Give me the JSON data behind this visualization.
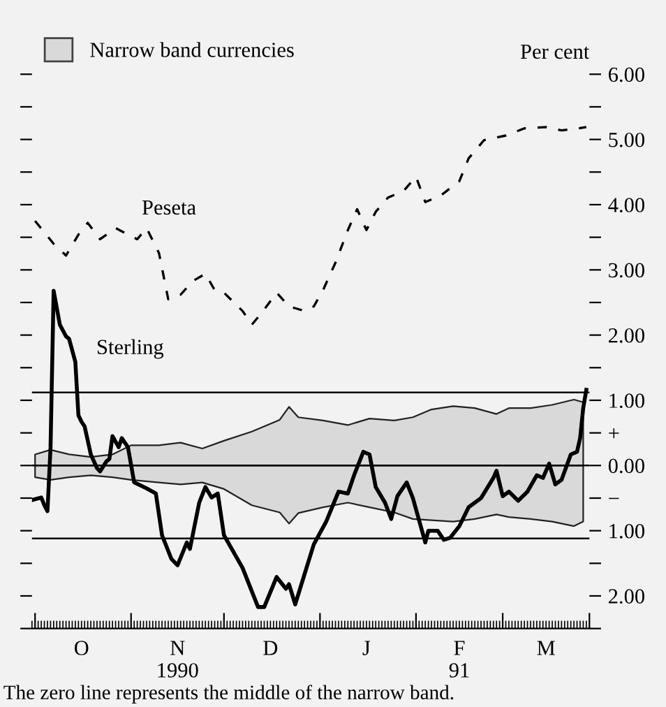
{
  "chart_data": {
    "type": "line",
    "ylabel": "Per cent",
    "xlim": [
      "1990-09-30",
      "1991-03-29"
    ],
    "xticks": [
      {
        "value": "1990-10-01",
        "label": null
      },
      {
        "value": "1990-11-01",
        "label": null
      },
      {
        "value": "1990-12-01",
        "label": null
      },
      {
        "value": "1991-01-01",
        "label": null
      },
      {
        "value": "1991-02-01",
        "label": null
      },
      {
        "value": "1991-03-01",
        "label": null
      },
      {
        "value": "1991-03-29",
        "label": null
      },
      {
        "value": "1990-10-16",
        "label": "O"
      },
      {
        "value": "1990-11-16",
        "label": "N\n1990"
      },
      {
        "value": "1990-12-16",
        "label": "D"
      },
      {
        "value": "1991-01-16",
        "label": "J"
      },
      {
        "value": "1991-02-15",
        "label": "F\n91"
      },
      {
        "value": "1991-03-15",
        "label": "M"
      }
    ],
    "ylim": [
      -2.5,
      6
    ],
    "yticks": [
      {
        "value": 6,
        "label": "6.00"
      },
      {
        "value": 5.5,
        "label": null
      },
      {
        "value": 5,
        "label": "5.00"
      },
      {
        "value": 4.5,
        "label": null
      },
      {
        "value": 4,
        "label": "4.00"
      },
      {
        "value": 3.5,
        "label": null
      },
      {
        "value": 3,
        "label": "3.00"
      },
      {
        "value": 2.5,
        "label": null
      },
      {
        "value": 2,
        "label": "2.00"
      },
      {
        "value": 1.5,
        "label": null
      },
      {
        "value": 1,
        "label": "1.00"
      },
      {
        "value": 0.5,
        "label": "+"
      },
      {
        "value": 0,
        "label": "0.00"
      },
      {
        "value": -0.5,
        "label": "−"
      },
      {
        "value": -1,
        "label": "1.00"
      },
      {
        "value": -1.5,
        "label": null
      },
      {
        "value": -2,
        "label": "2.00"
      },
      {
        "value": -2.5,
        "label": null
      }
    ],
    "grid": false,
    "legend": "top left",
    "series": [
      {
        "type": "area",
        "name": "Narrow band currencies",
        "color": "#d9d9d9",
        "x": [
          "1990-10-01",
          "1990-10-06",
          "1990-10-12",
          "1990-10-19",
          "1990-10-26",
          "1990-11-01",
          "1990-11-10",
          "1990-11-17",
          "1990-11-24",
          "1990-12-01",
          "1990-12-10",
          "1990-12-19",
          "1990-12-22",
          "1990-12-25",
          "1991-01-02",
          "1991-01-10",
          "1991-01-17",
          "1991-01-25",
          "1991-01-31",
          "1991-02-06",
          "1991-02-13",
          "1991-02-20",
          "1991-02-27",
          "1991-03-03",
          "1991-03-10",
          "1991-03-17",
          "1991-03-24",
          "1991-03-27"
        ],
        "values": [
          0.17,
          0.24,
          0.17,
          0.13,
          0.17,
          0.31,
          0.31,
          0.35,
          0.26,
          0.38,
          0.52,
          0.7,
          0.9,
          0.74,
          0.69,
          0.62,
          0.72,
          0.69,
          0.74,
          0.86,
          0.91,
          0.88,
          0.79,
          0.88,
          0.88,
          0.93,
          1.01,
          0.97
        ]
      },
      {
        "type": "area",
        "color": "#d9d9d9",
        "x": [
          "1990-10-01",
          "1990-10-06",
          "1990-10-12",
          "1990-10-19",
          "1990-10-26",
          "1990-11-01",
          "1990-11-10",
          "1990-11-17",
          "1990-11-24",
          "1990-12-01",
          "1990-12-10",
          "1990-12-19",
          "1990-12-22",
          "1990-12-25",
          "1991-01-02",
          "1991-01-10",
          "1991-01-17",
          "1991-01-25",
          "1991-01-31",
          "1991-02-06",
          "1991-02-13",
          "1991-02-20",
          "1991-02-27",
          "1991-03-03",
          "1991-03-10",
          "1991-03-17",
          "1991-03-24",
          "1991-03-27"
        ],
        "values": [
          -0.18,
          -0.22,
          -0.18,
          -0.15,
          -0.18,
          -0.22,
          -0.26,
          -0.29,
          -0.26,
          -0.36,
          -0.61,
          -0.72,
          -0.89,
          -0.73,
          -0.64,
          -0.57,
          -0.64,
          -0.72,
          -0.82,
          -0.84,
          -0.86,
          -0.82,
          -0.75,
          -0.79,
          -0.82,
          -0.86,
          -0.93,
          -0.86
        ]
      },
      {
        "name": "Peseta",
        "color": "#000000",
        "line_style": "dashed",
        "x": [
          "1990-10-01",
          "1990-10-07",
          "1990-10-11",
          "1990-10-15",
          "1990-10-18",
          "1990-10-22",
          "1990-10-27",
          "1990-11-03",
          "1990-11-06",
          "1990-11-10",
          "1990-11-13",
          "1990-11-17",
          "1990-11-21",
          "1990-11-25",
          "1990-11-28",
          "1990-12-01",
          "1990-12-07",
          "1990-12-10",
          "1990-12-13",
          "1990-12-18",
          "1990-12-22",
          "1990-12-27",
          "1990-12-30",
          "1991-01-02",
          "1991-01-06",
          "1991-01-10",
          "1991-01-13",
          "1991-01-16",
          "1991-01-19",
          "1991-01-23",
          "1991-01-28",
          "1991-02-01",
          "1991-02-04",
          "1991-02-09",
          "1991-02-15",
          "1991-02-18",
          "1991-02-23",
          "1991-02-27",
          "1991-03-02",
          "1991-03-08",
          "1991-03-15",
          "1991-03-20",
          "1991-03-24",
          "1991-03-28"
        ],
        "values": [
          3.75,
          3.4,
          3.22,
          3.54,
          3.72,
          3.47,
          3.64,
          3.47,
          3.64,
          3.26,
          2.55,
          2.62,
          2.83,
          2.94,
          2.69,
          2.65,
          2.37,
          2.16,
          2.33,
          2.65,
          2.44,
          2.37,
          2.44,
          2.69,
          3.11,
          3.61,
          3.93,
          3.61,
          3.89,
          4.11,
          4.21,
          4.43,
          4.04,
          4.14,
          4.36,
          4.71,
          4.99,
          5.03,
          5.06,
          5.17,
          5.19,
          5.14,
          5.16,
          5.19
        ]
      },
      {
        "name": "Sterling",
        "color": "#000000",
        "line_style": "solid",
        "x": [
          "1990-09-30",
          "1990-10-03",
          "1990-10-04",
          "1990-10-05",
          "1990-10-06",
          "1990-10-07",
          "1990-10-09",
          "1990-10-11",
          "1990-10-12",
          "1990-10-14",
          "1990-10-15",
          "1990-10-16",
          "1990-10-17",
          "1990-10-19",
          "1990-10-21",
          "1990-10-22",
          "1990-10-24",
          "1990-10-25",
          "1990-10-26",
          "1990-10-28",
          "1990-10-29",
          "1990-10-31",
          "1990-11-02",
          "1990-11-06",
          "1990-11-09",
          "1990-11-11",
          "1990-11-14",
          "1990-11-16",
          "1990-11-19",
          "1990-11-20",
          "1990-11-23",
          "1990-11-25",
          "1990-11-27",
          "1990-11-29",
          "1990-12-01",
          "1990-12-07",
          "1990-12-12",
          "1990-12-14",
          "1990-12-18",
          "1990-12-21",
          "1990-12-22",
          "1990-12-24",
          "1990-12-27",
          "1990-12-30",
          "1991-01-03",
          "1991-01-07",
          "1991-01-10",
          "1991-01-12",
          "1991-01-15",
          "1991-01-17",
          "1991-01-19",
          "1991-01-22",
          "1991-01-24",
          "1991-01-26",
          "1991-01-29",
          "1991-01-31",
          "1991-02-04",
          "1991-02-05",
          "1991-02-08",
          "1991-02-10",
          "1991-02-12",
          "1991-02-15",
          "1991-02-18",
          "1991-02-22",
          "1991-02-26",
          "1991-02-27",
          "1991-03-01",
          "1991-03-03",
          "1991-03-06",
          "1991-03-09",
          "1991-03-12",
          "1991-03-14",
          "1991-03-16",
          "1991-03-18",
          "1991-03-20",
          "1991-03-23",
          "1991-03-25",
          "1991-03-26",
          "1991-03-27",
          "1991-03-28"
        ],
        "values": [
          -0.53,
          -0.49,
          -0.61,
          -0.7,
          0.28,
          2.68,
          2.16,
          1.98,
          1.94,
          1.59,
          0.77,
          0.67,
          0.6,
          0.17,
          -0.04,
          -0.09,
          0.06,
          0.1,
          0.45,
          0.28,
          0.42,
          0.28,
          -0.26,
          -0.35,
          -0.43,
          -1.07,
          -1.43,
          -1.53,
          -1.18,
          -1.28,
          -0.57,
          -0.33,
          -0.49,
          -0.43,
          -1.07,
          -1.57,
          -2.17,
          -2.17,
          -1.71,
          -1.89,
          -1.82,
          -2.13,
          -1.67,
          -1.21,
          -0.86,
          -0.4,
          -0.43,
          -0.15,
          0.21,
          0.17,
          -0.33,
          -0.57,
          -0.82,
          -0.47,
          -0.26,
          -0.5,
          -1.18,
          -1.0,
          -1.0,
          -1.14,
          -1.11,
          -0.93,
          -0.64,
          -0.5,
          -0.19,
          -0.08,
          -0.47,
          -0.4,
          -0.54,
          -0.4,
          -0.15,
          -0.19,
          0.03,
          -0.29,
          -0.22,
          0.17,
          0.21,
          0.42,
          0.88,
          1.16
        ]
      }
    ],
    "ref_lines": [
      {
        "axis": "y",
        "value": 0,
        "color": "#000000"
      },
      {
        "axis": "y",
        "value": 1.12,
        "color": "#000000"
      },
      {
        "axis": "y",
        "value": -1.12,
        "color": "#000000"
      }
    ],
    "annotations": [
      "The zero line represents the middle of the narrow band."
    ]
  }
}
